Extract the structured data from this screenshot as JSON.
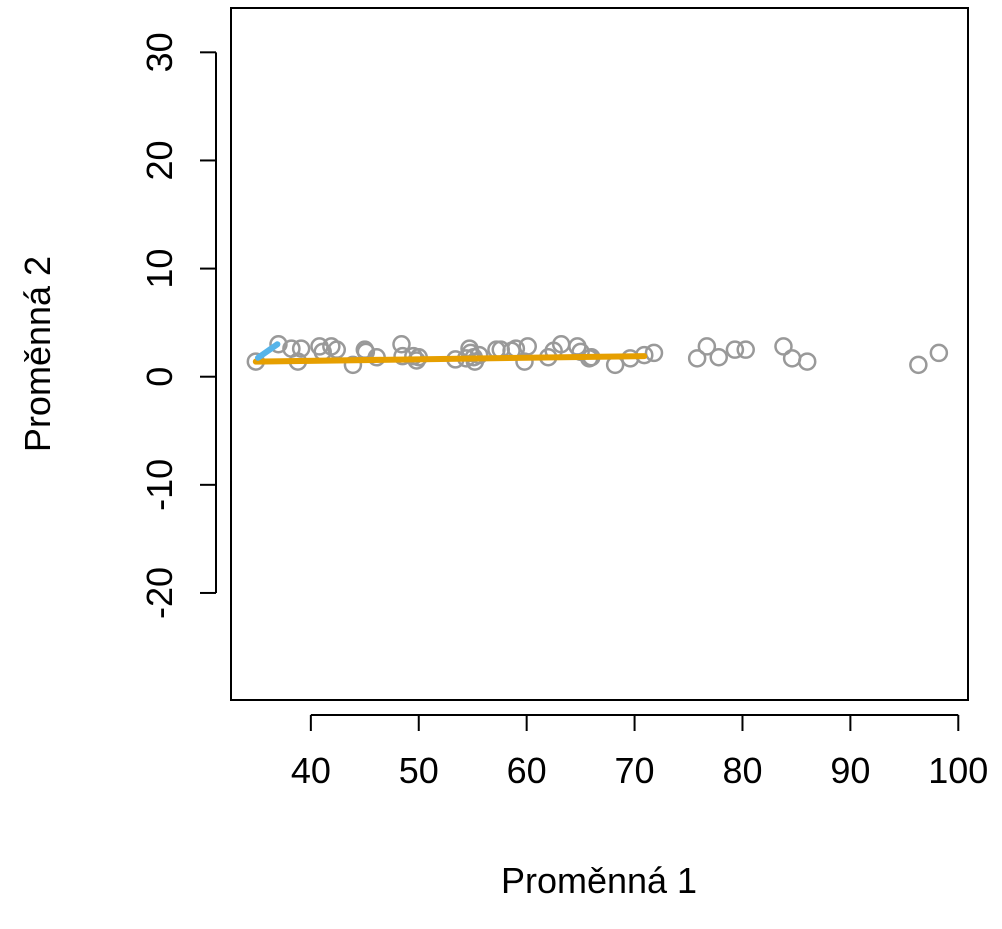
{
  "chart_data": {
    "type": "scatter",
    "x_label": "Proměnná 1",
    "y_label": "Proměnná 2",
    "xlim": [
      32.6,
      100.9
    ],
    "ylim": [
      -29.9,
      34.1
    ],
    "xticks": [
      40,
      50,
      60,
      70,
      80,
      90,
      100
    ],
    "yticks": [
      -20,
      -10,
      0,
      10,
      20,
      30
    ],
    "points": {
      "color": "#999999",
      "x": [
        34.9,
        37.0,
        38.2,
        38.8,
        39.1,
        40.8,
        41.1,
        41.9,
        42.4,
        43.9,
        45.0,
        45.1,
        46.1,
        48.4,
        48.5,
        49.5,
        49.8,
        50.0,
        53.4,
        54.4,
        54.7,
        54.8,
        55.1,
        55.2,
        55.6,
        57.2,
        57.6,
        58.6,
        59.0,
        59.8,
        60.1,
        62.0,
        62.5,
        63.2,
        64.7,
        65.0,
        65.8,
        66.0,
        68.2,
        69.6,
        70.9,
        71.8,
        75.8,
        76.7,
        77.8,
        79.3,
        80.3,
        83.8,
        84.6,
        86.0,
        96.3,
        98.2
      ],
      "y": [
        1.4,
        3.0,
        2.6,
        1.4,
        2.6,
        2.8,
        2.3,
        2.8,
        2.5,
        1.1,
        2.5,
        2.3,
        1.8,
        3.0,
        1.9,
        1.9,
        1.5,
        1.8,
        1.6,
        1.7,
        2.6,
        2.2,
        1.8,
        1.4,
        2.0,
        2.5,
        2.5,
        2.4,
        2.6,
        1.4,
        2.8,
        1.8,
        2.4,
        3.0,
        2.8,
        2.3,
        1.7,
        1.8,
        1.1,
        1.7,
        2.0,
        2.2,
        1.7,
        2.8,
        1.8,
        2.5,
        2.5,
        2.8,
        1.7,
        1.4,
        1.1,
        2.2
      ]
    },
    "lines": [
      {
        "color": "#e69f00",
        "x": [
          34.9,
          70.9
        ],
        "y": [
          1.4,
          1.9
        ]
      },
      {
        "color": "#56b4e9",
        "x": [
          35.1,
          36.9
        ],
        "y": [
          1.75,
          3.0
        ]
      }
    ]
  }
}
